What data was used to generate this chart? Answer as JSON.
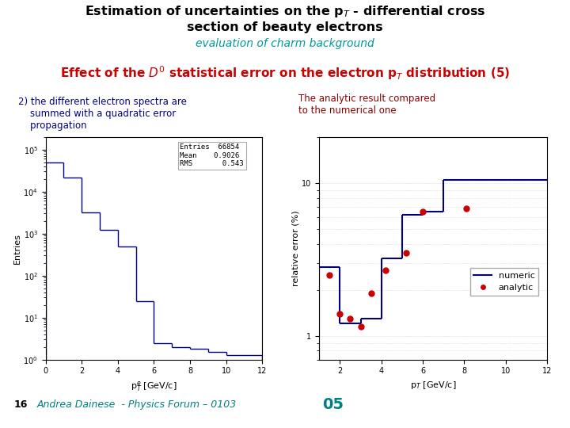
{
  "bg_color": "#ffffff",
  "title_color": "#000000",
  "subtitle_color": "#009999",
  "effect_color": "#cc0000",
  "left_label_color": "#000080",
  "right_label_color": "#8b0000",
  "footnote_color": "#008080",
  "left_hist_color": "#000080",
  "right_numeric_color": "#000080",
  "right_analytic_color": "#cc0000",
  "hist_entries": "66854",
  "hist_mean": "0.9026",
  "hist_rms": "0.543",
  "hist_xedges": [
    0,
    1,
    2,
    3,
    4,
    5,
    6,
    7,
    8,
    9,
    10,
    12
  ],
  "hist_values": [
    50000,
    22000,
    3200,
    1200,
    500,
    25,
    2.5,
    2.0,
    1.8,
    1.5,
    1.3
  ],
  "numeric_step_x": [
    1,
    2,
    3,
    4,
    5,
    6,
    7,
    8,
    9,
    12
  ],
  "numeric_step_y": [
    2.8,
    1.2,
    1.3,
    3.2,
    6.2,
    6.5,
    10.5,
    10.5,
    10.5,
    10.5
  ],
  "analytic_x": [
    1.5,
    2.0,
    2.5,
    3.0,
    3.5,
    4.2,
    5.2,
    6.0,
    8.1
  ],
  "analytic_y": [
    2.5,
    1.4,
    1.3,
    1.15,
    1.9,
    2.7,
    3.5,
    6.5,
    6.8
  ],
  "footnote_num": "16",
  "footnote_text": "Andrea Dainese  - Physics Forum – 0103",
  "footnote_bold": "05"
}
